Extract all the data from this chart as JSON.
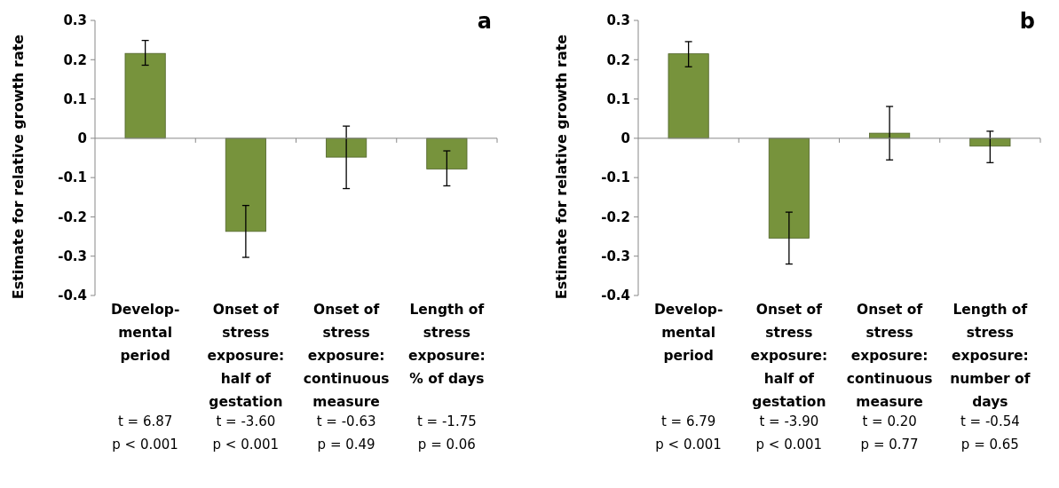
{
  "chart_data": [
    {
      "type": "bar",
      "title": "a",
      "ylabel": "Estimate for relative growth rate",
      "categories": [
        "Develop-\nmental\nperiod",
        "Onset of\nstress\nexposure:\nhalf of\ngestation",
        "Onset of\nstress\nexposure:\ncontinuous\nmeasure",
        "Length of\nstress\nexposure:\n% of days"
      ],
      "series": [
        {
          "color": "#77933c",
          "values": [
            0.216,
            -0.237,
            -0.048,
            -0.078
          ],
          "errors": [
            [
              0.186,
              0.249
            ],
            [
              -0.303,
              -0.171
            ],
            [
              -0.128,
              0.031
            ],
            [
              -0.121,
              -0.032
            ]
          ]
        }
      ],
      "ylim": [
        -0.4,
        0.3
      ],
      "yticks": [
        -0.4,
        -0.3,
        -0.2,
        -0.1,
        0,
        0.1,
        0.2,
        0.3
      ],
      "annotations": [
        "t = 6.87\np < 0.001",
        "t = -3.60\np < 0.001",
        "t = -0.63\np = 0.49",
        "t = -1.75\np = 0.06"
      ]
    },
    {
      "type": "bar",
      "title": "b",
      "ylabel": "Estimate for relative growth rate",
      "categories": [
        "Develop-\nmental\nperiod",
        "Onset of\nstress\nexposure:\nhalf of\ngestation",
        "Onset of\nstress\nexposure:\ncontinuous\nmeasure",
        "Length of\nstress\nexposure:\nnumber of\ndays"
      ],
      "series": [
        {
          "color": "#77933c",
          "values": [
            0.215,
            -0.254,
            0.013,
            -0.02
          ],
          "errors": [
            [
              0.182,
              0.246
            ],
            [
              -0.32,
              -0.188
            ],
            [
              -0.055,
              0.081
            ],
            [
              -0.062,
              0.018
            ]
          ]
        }
      ],
      "ylim": [
        -0.4,
        0.3
      ],
      "yticks": [
        -0.4,
        -0.3,
        -0.2,
        -0.1,
        0,
        0.1,
        0.2,
        0.3
      ],
      "annotations": [
        "t = 6.79\np < 0.001",
        "t = -3.90\np < 0.001",
        "t = 0.20\np = 0.77",
        "t = -0.54\np = 0.65"
      ]
    }
  ]
}
